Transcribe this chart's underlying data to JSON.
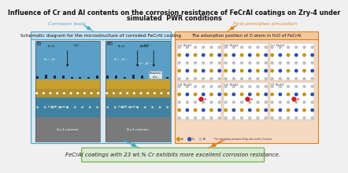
{
  "title_line1": "Influence of Cr and Al contents on the corrosion resistance of FeCrAl coatings on Zry-4 under",
  "title_line2": "simulated  PWR conditions",
  "title_fontsize": 5.8,
  "bg_color": "#f0f0f0",
  "left_label": "Corrosion tests",
  "left_label_color": "#4da6c8",
  "right_label": "First-principles simulation",
  "right_label_color": "#e08020",
  "left_box_title": "Schematic diagram for the microstructure of corroded FeCrAl coating",
  "left_box_bg": "#d6e8f4",
  "left_box_border": "#4da6c8",
  "left_box_title_bg": "#c5dff0",
  "right_box_title": "The adsorption position of O atom in H₂O of FeCrAl",
  "right_box_bg": "#f5d9c0",
  "right_box_border": "#e08020",
  "right_box_title_bg": "#f5c89a",
  "bottom_box_text": "FeCrAl coatings with 23 wt.% Cr exhibits more excellent corrosion resistance.",
  "bottom_box_bg": "#d9ead3",
  "bottom_box_border": "#6aaa40",
  "water_color": "#5b9fc7",
  "oxide_top_color": "#c8a030",
  "oxide_bot_color": "#d4b848",
  "fecral_color": "#4080a0",
  "fecral_dots_color": "#80c0c0",
  "zry_color": "#7a7a7a",
  "dark_layer_color": "#2a3a5a",
  "slab_labels_top": [
    "(a) Slab1",
    "(b) Slab2",
    "(c) Slab3"
  ],
  "slab_labels_bot": [
    "(d) Slab1",
    "(e) Slab2",
    "(f) Slab3"
  ],
  "atom_fe_color": "#c8921a",
  "atom_cr_color": "#3050a0",
  "atom_al_color": "#c0c0c0",
  "atom_o_color": "#cc2222",
  "atom_border": "#555555",
  "arrow_blue": "#4da6c8",
  "arrow_orange": "#e08020"
}
